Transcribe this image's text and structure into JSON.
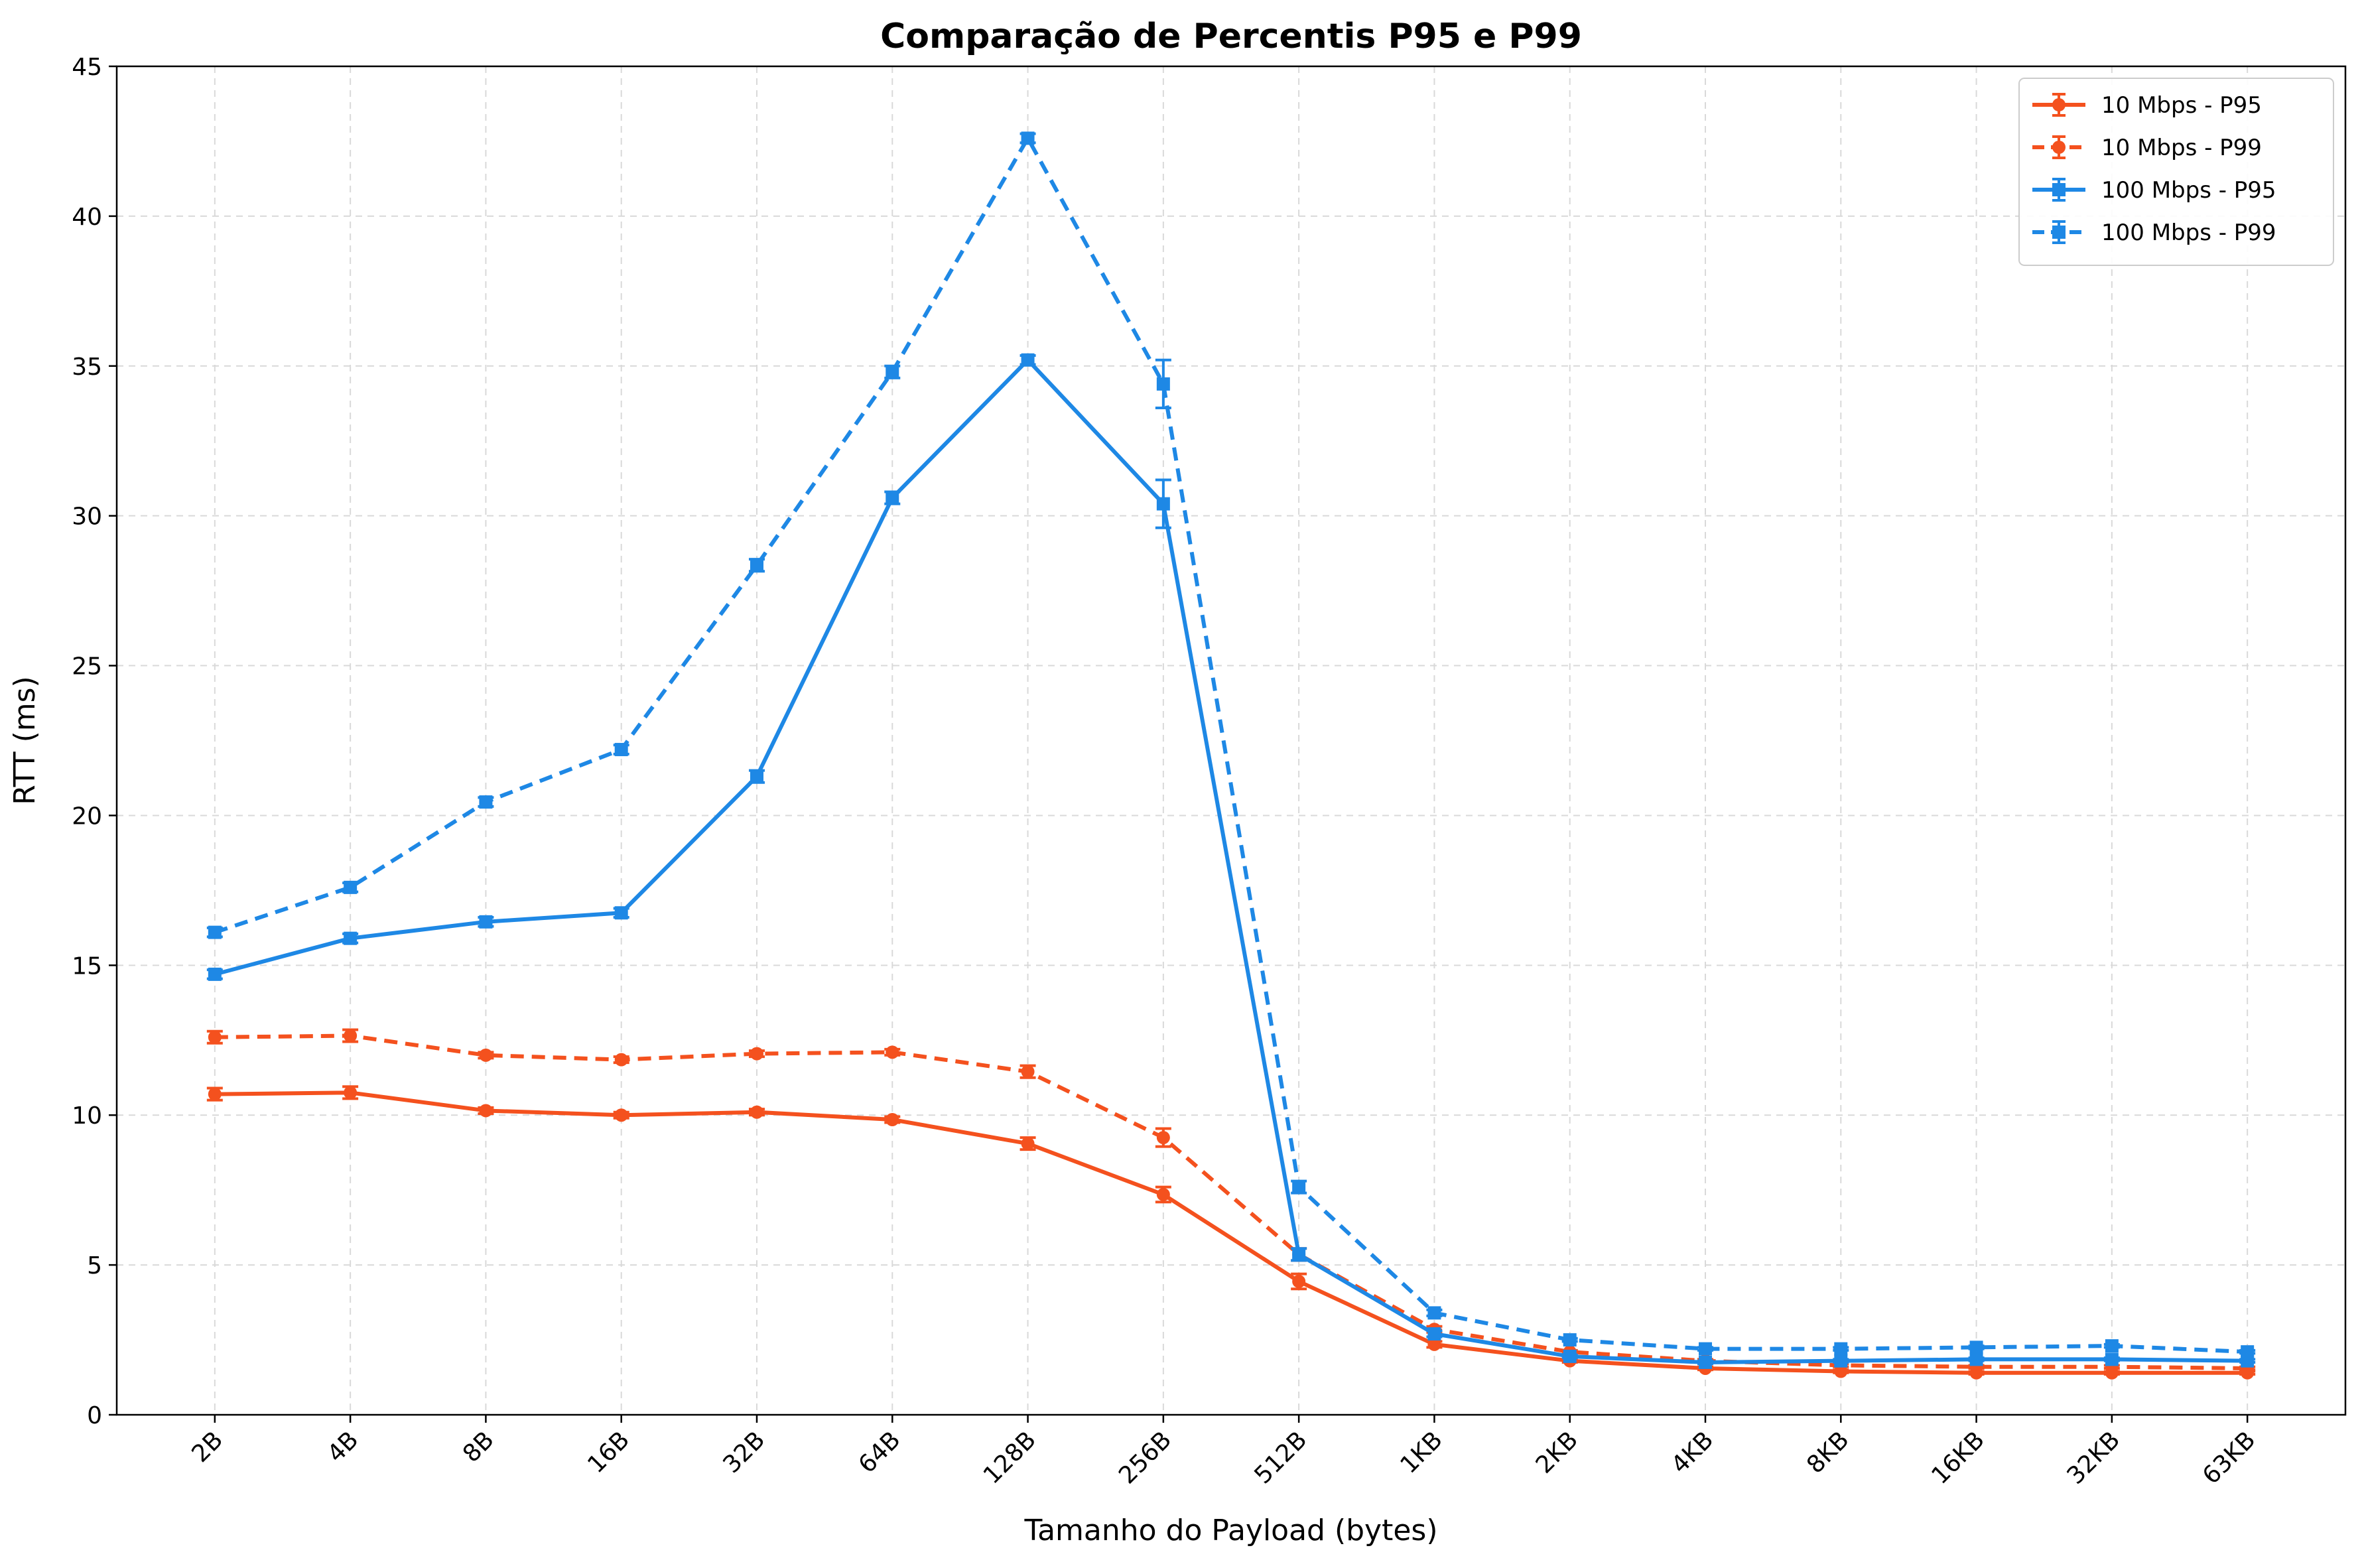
{
  "chart_data": {
    "type": "line",
    "title": "Comparação de Percentis P95 e P99",
    "xlabel": "Tamanho do Payload (bytes)",
    "ylabel": "RTT (ms)",
    "categories": [
      "2B",
      "4B",
      "8B",
      "16B",
      "32B",
      "64B",
      "128B",
      "256B",
      "512B",
      "1KB",
      "2KB",
      "4KB",
      "8KB",
      "16KB",
      "32KB",
      "63KB"
    ],
    "ylim": [
      0,
      45
    ],
    "yticks": [
      0,
      5,
      10,
      15,
      20,
      25,
      30,
      35,
      40,
      45
    ],
    "grid": true,
    "legend_position": "top-right",
    "series": [
      {
        "name": "10 Mbps - P95",
        "color": "#f4511e",
        "dashed": false,
        "marker": "circle",
        "values": [
          10.7,
          10.75,
          10.15,
          10.0,
          10.1,
          9.85,
          9.05,
          7.35,
          4.45,
          2.35,
          1.8,
          1.55,
          1.45,
          1.4,
          1.4,
          1.4
        ],
        "errors": [
          0.2,
          0.2,
          0.1,
          0.1,
          0.1,
          0.1,
          0.2,
          0.25,
          0.25,
          0.1,
          0.05,
          0.05,
          0.05,
          0.05,
          0.05,
          0.05
        ]
      },
      {
        "name": "10 Mbps - P99",
        "color": "#f4511e",
        "dashed": true,
        "marker": "circle",
        "values": [
          12.6,
          12.65,
          12.0,
          11.85,
          12.05,
          12.1,
          11.45,
          9.25,
          5.35,
          2.85,
          2.1,
          1.8,
          1.65,
          1.6,
          1.6,
          1.55
        ],
        "errors": [
          0.2,
          0.2,
          0.1,
          0.1,
          0.1,
          0.1,
          0.2,
          0.3,
          0.2,
          0.1,
          0.05,
          0.05,
          0.05,
          0.05,
          0.05,
          0.05
        ]
      },
      {
        "name": "100 Mbps - P95",
        "color": "#1e88e5",
        "dashed": false,
        "marker": "square",
        "values": [
          14.7,
          15.9,
          16.45,
          16.75,
          21.3,
          30.6,
          35.2,
          30.4,
          5.35,
          2.7,
          1.95,
          1.75,
          1.8,
          1.85,
          1.85,
          1.8
        ],
        "errors": [
          0.15,
          0.15,
          0.15,
          0.15,
          0.2,
          0.2,
          0.15,
          0.8,
          0.2,
          0.1,
          0.05,
          0.05,
          0.05,
          0.05,
          0.05,
          0.05
        ]
      },
      {
        "name": "100 Mbps - P99",
        "color": "#1e88e5",
        "dashed": true,
        "marker": "square",
        "values": [
          16.1,
          17.6,
          20.45,
          22.2,
          28.35,
          34.8,
          42.6,
          34.4,
          7.6,
          3.4,
          2.5,
          2.2,
          2.2,
          2.25,
          2.3,
          2.1
        ],
        "errors": [
          0.15,
          0.15,
          0.15,
          0.15,
          0.2,
          0.2,
          0.15,
          0.8,
          0.2,
          0.1,
          0.05,
          0.05,
          0.05,
          0.05,
          0.05,
          0.05
        ]
      }
    ]
  }
}
